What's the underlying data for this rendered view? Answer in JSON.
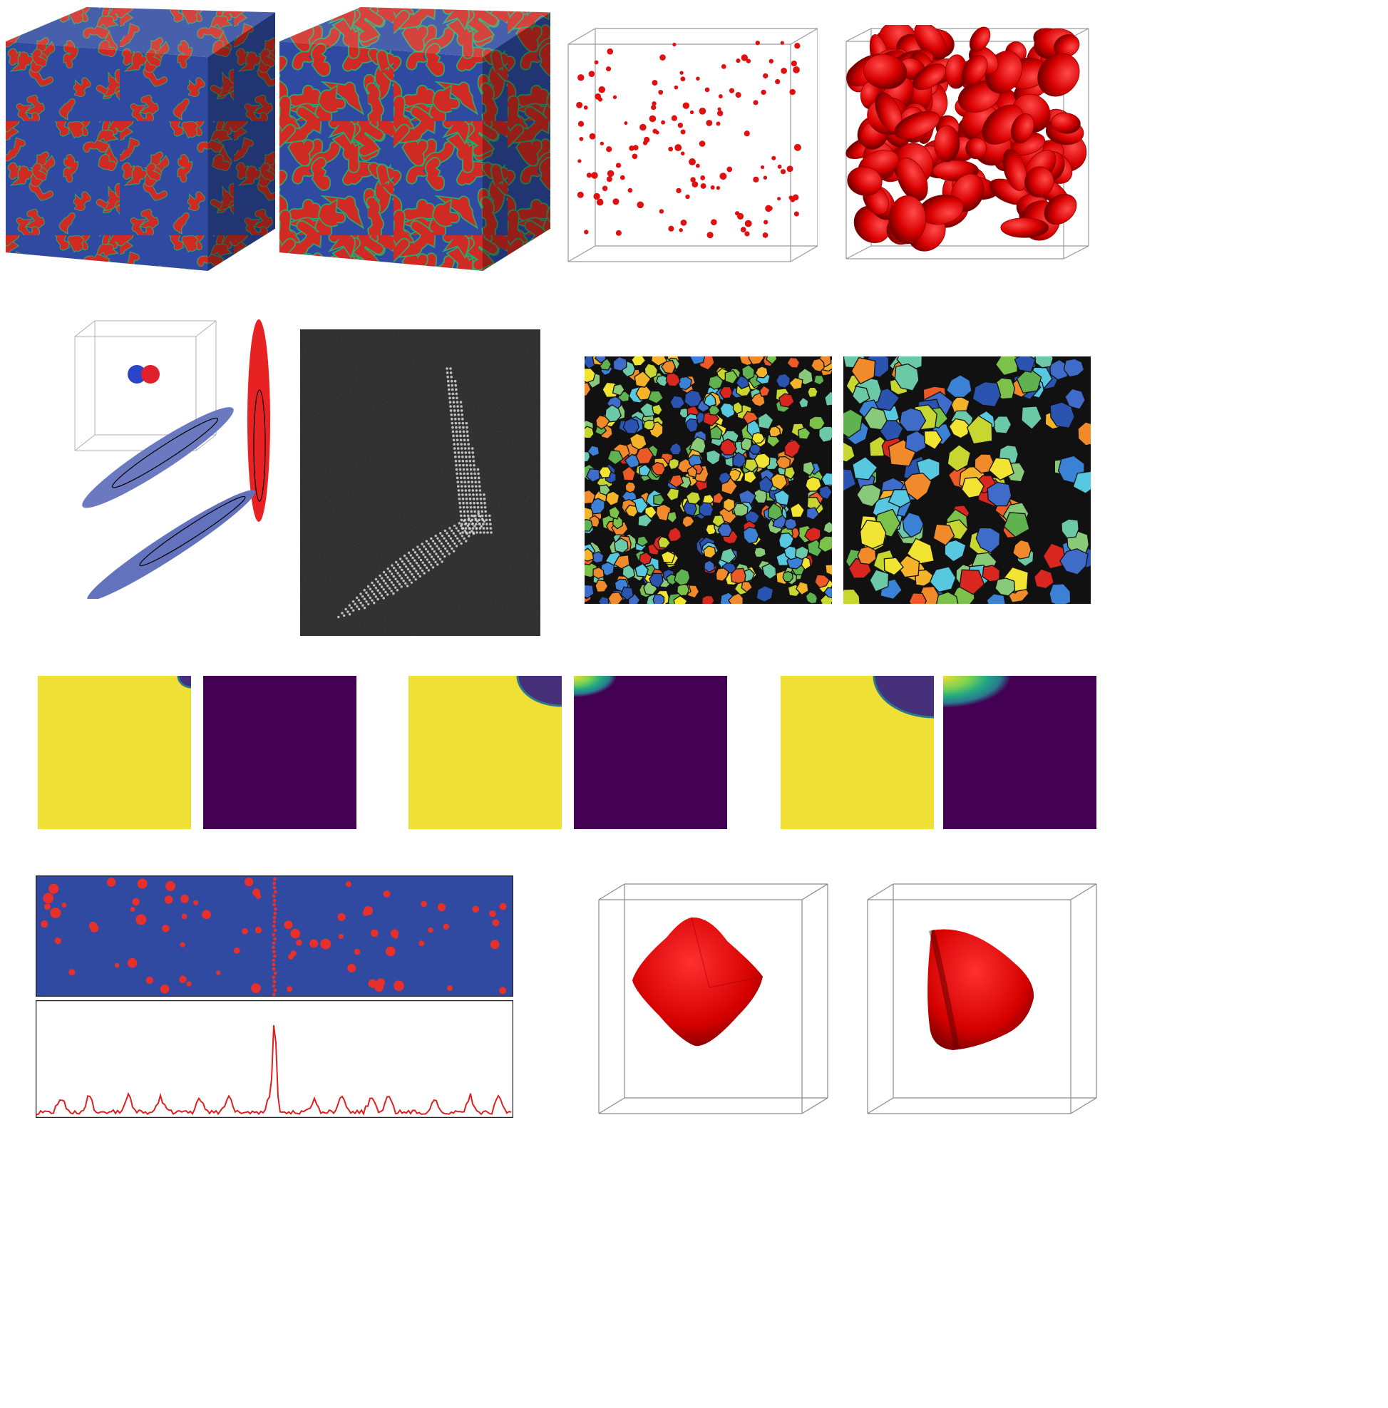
{
  "colors": {
    "spinodal_red": "#cf2a23",
    "spinodal_blue": "#2f4aa0",
    "interface_green": "#2ea86a",
    "particle_red": "#e01010",
    "wire": "#9a9a9a",
    "viridis_yellow": "#f0e035",
    "viridis_purple": "#440154",
    "ellipse_red": "#e82222",
    "ellipse_blue": "#6272bd",
    "sem_background": "#222222",
    "profile_line": "#e02020"
  },
  "panels": [
    {
      "id": "spinodal-cube-fine",
      "kind": "3d-cube-texture"
    },
    {
      "id": "spinodal-cube-coarse",
      "kind": "3d-cube-texture"
    },
    {
      "id": "nucleation-box-small",
      "kind": "3d-wire-box-with-particles"
    },
    {
      "id": "nucleation-box-grown",
      "kind": "3d-wire-box-with-particles"
    },
    {
      "id": "dimer-box",
      "kind": "3d-wire-box"
    },
    {
      "id": "ellipsoid-pair",
      "kind": "3d-shapes"
    },
    {
      "id": "sem-micrograph",
      "kind": "grayscale-image"
    },
    {
      "id": "grain-map-fine",
      "kind": "voronoi-map"
    },
    {
      "id": "grain-map-coarse",
      "kind": "voronoi-map"
    },
    {
      "id": "viridis-field-series",
      "kind": "heatmap-pairs",
      "steps": 3
    },
    {
      "id": "precipitate-strip",
      "kind": "2d-field"
    },
    {
      "id": "concentration-profile",
      "kind": "line-profile"
    },
    {
      "id": "crystal-octahedron",
      "kind": "3d-wire-box-with-particle"
    },
    {
      "id": "crystal-tetrahedron",
      "kind": "3d-wire-box-with-particle"
    }
  ]
}
